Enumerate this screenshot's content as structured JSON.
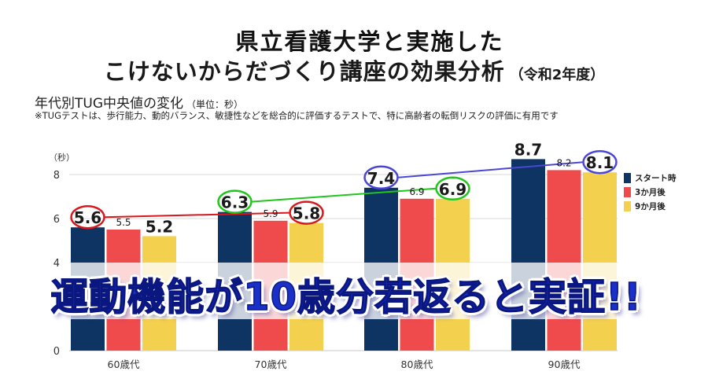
{
  "header": {
    "title_line1": "県立看護大学と実施した",
    "title_line2": "こけないからだづくり講座の効果分析",
    "title_year": "（令和2年度）",
    "subtitle": "年代別TUG中央値の変化",
    "subtitle_unit": "（単位：秒）",
    "note": "※TUGテストは、歩行能力、動的バランス、敏捷性などを総合的に評価するテストで、特に高齢者の転倒リスクの評価に有用です"
  },
  "banner": {
    "text": "運動機能が10歳分若返ると実証!!"
  },
  "colors": {
    "start": "#0e3463",
    "three_months": "#ef4b4d",
    "nine_months": "#f3d14f",
    "line_red": "#d9181c",
    "line_green": "#22c41e",
    "line_blue": "#4b46d6",
    "grid": "#d9d9d9"
  },
  "chart_data": {
    "type": "bar",
    "title": "年代別TUG中央値の変化",
    "ylabel": "（秒）",
    "xlabel": "",
    "ylim": [
      0,
      8
    ],
    "yticks": [
      0,
      4,
      6,
      8
    ],
    "grid": true,
    "legend_position": "right",
    "categories": [
      "60歳代",
      "70歳代",
      "80歳代",
      "90歳代"
    ],
    "series": [
      {
        "name": "スタート時",
        "values": [
          5.6,
          6.3,
          7.4,
          8.7
        ]
      },
      {
        "name": "3か月後",
        "values": [
          5.5,
          5.9,
          6.9,
          8.2
        ]
      },
      {
        "name": "9か月後",
        "values": [
          5.2,
          5.8,
          6.9,
          8.1
        ]
      }
    ],
    "annotations": [
      {
        "type": "connector",
        "color": "line_red",
        "from": {
          "category": "60歳代",
          "series": "スタート時",
          "value": 5.6
        },
        "to": {
          "category": "70歳代",
          "series": "9か月後",
          "value": 5.8
        }
      },
      {
        "type": "connector",
        "color": "line_green",
        "from": {
          "category": "70歳代",
          "series": "スタート時",
          "value": 6.3
        },
        "to": {
          "category": "80歳代",
          "series": "9か月後",
          "value": 6.9
        }
      },
      {
        "type": "connector",
        "color": "line_blue",
        "from": {
          "category": "80歳代",
          "series": "スタート時",
          "value": 7.4
        },
        "to": {
          "category": "90歳代",
          "series": "9か月後",
          "value": 8.1
        }
      }
    ]
  }
}
